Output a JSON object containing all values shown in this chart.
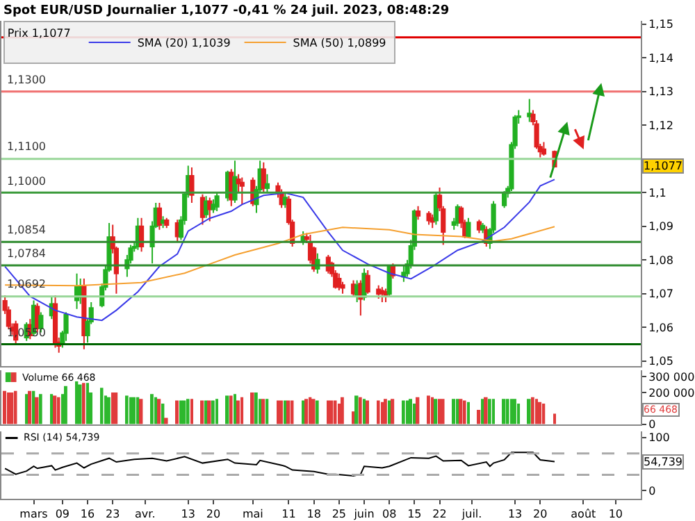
{
  "chart_data": [
    {
      "type": "candlestick",
      "title": "Spot EUR/USD Journalier 1,1077 -0,41 % 24 juil. 2023, 08:48:29",
      "legend_title": "Prix 1,1077",
      "x": [
        "2023-02-21",
        "2023-02-22",
        "2023-02-23",
        "2023-02-24",
        "2023-02-27",
        "2023-02-28",
        "2023-03-01",
        "2023-03-02",
        "2023-03-03",
        "2023-03-06",
        "2023-03-07",
        "2023-03-08",
        "2023-03-09",
        "2023-03-10",
        "2023-03-13",
        "2023-03-14",
        "2023-03-15",
        "2023-03-16",
        "2023-03-17",
        "2023-03-20",
        "2023-03-21",
        "2023-03-22",
        "2023-03-23",
        "2023-03-24",
        "2023-03-27",
        "2023-03-28",
        "2023-03-29",
        "2023-03-30",
        "2023-03-31",
        "2023-04-03",
        "2023-04-04",
        "2023-04-05",
        "2023-04-06",
        "2023-04-07",
        "2023-04-10",
        "2023-04-11",
        "2023-04-12",
        "2023-04-13",
        "2023-04-14",
        "2023-04-17",
        "2023-04-18",
        "2023-04-19",
        "2023-04-20",
        "2023-04-21",
        "2023-04-24",
        "2023-04-25",
        "2023-04-26",
        "2023-04-27",
        "2023-04-28",
        "2023-05-01",
        "2023-05-02",
        "2023-05-03",
        "2023-05-04",
        "2023-05-05",
        "2023-05-08",
        "2023-05-09",
        "2023-05-10",
        "2023-05-11",
        "2023-05-12",
        "2023-05-15",
        "2023-05-16",
        "2023-05-17",
        "2023-05-18",
        "2023-05-19",
        "2023-05-22",
        "2023-05-23",
        "2023-05-24",
        "2023-05-25",
        "2023-05-26",
        "2023-05-29",
        "2023-05-30",
        "2023-05-31",
        "2023-06-01",
        "2023-06-02",
        "2023-06-05",
        "2023-06-06",
        "2023-06-07",
        "2023-06-08",
        "2023-06-09",
        "2023-06-12",
        "2023-06-13",
        "2023-06-14",
        "2023-06-15",
        "2023-06-16",
        "2023-06-19",
        "2023-06-20",
        "2023-06-21",
        "2023-06-22",
        "2023-06-23",
        "2023-06-26",
        "2023-06-27",
        "2023-06-28",
        "2023-06-29",
        "2023-06-30",
        "2023-07-03",
        "2023-07-04",
        "2023-07-05",
        "2023-07-06",
        "2023-07-07",
        "2023-07-10",
        "2023-07-11",
        "2023-07-12",
        "2023-07-13",
        "2023-07-14",
        "2023-07-17",
        "2023-07-18",
        "2023-07-19",
        "2023-07-20",
        "2023-07-21",
        "2023-07-24"
      ],
      "ohlc": [
        [
          1.0679,
          1.0695,
          1.064,
          1.0651
        ],
        [
          1.0651,
          1.0662,
          1.0595,
          1.0604
        ],
        [
          1.06,
          1.0612,
          1.0578,
          1.059
        ],
        [
          1.061,
          1.062,
          1.0553,
          1.0563
        ],
        [
          1.057,
          1.0615,
          1.056,
          1.0608
        ],
        [
          1.0608,
          1.0625,
          1.0565,
          1.0576
        ],
        [
          1.0583,
          1.068,
          1.0575,
          1.0665
        ],
        [
          1.0662,
          1.0672,
          1.0585,
          1.0597
        ],
        [
          1.0597,
          1.0645,
          1.0585,
          1.0635
        ],
        [
          1.0635,
          1.069,
          1.0625,
          1.067
        ],
        [
          1.067,
          1.0695,
          1.054,
          1.055
        ],
        [
          1.0556,
          1.057,
          1.0525,
          1.0545
        ],
        [
          1.055,
          1.059,
          1.054,
          1.0583
        ],
        [
          1.0583,
          1.0645,
          1.056,
          1.0638
        ],
        [
          1.068,
          1.076,
          1.0655,
          1.0722
        ],
        [
          1.069,
          1.0745,
          1.067,
          1.0722
        ],
        [
          1.0722,
          1.0745,
          1.0535,
          1.0576
        ],
        [
          1.0576,
          1.0625,
          1.0555,
          1.0617
        ],
        [
          1.0617,
          1.0675,
          1.061,
          1.0658
        ],
        [
          1.0665,
          1.073,
          1.066,
          1.072
        ],
        [
          1.072,
          1.0785,
          1.071,
          1.0771
        ],
        [
          1.0771,
          1.091,
          1.0765,
          1.0868
        ],
        [
          1.0868,
          1.0905,
          1.082,
          1.0834
        ],
        [
          1.0834,
          1.084,
          1.07,
          1.076
        ],
        [
          1.0775,
          1.0815,
          1.075,
          1.08
        ],
        [
          1.08,
          1.0845,
          1.079,
          1.0835
        ],
        [
          1.0835,
          1.0855,
          1.0825,
          1.084
        ],
        [
          1.084,
          1.0925,
          1.083,
          1.09
        ],
        [
          1.09,
          1.0925,
          1.0825,
          1.084
        ],
        [
          1.084,
          1.0915,
          1.079,
          1.09
        ],
        [
          1.09,
          1.097,
          1.0895,
          1.0954
        ],
        [
          1.0954,
          1.097,
          1.089,
          1.0904
        ],
        [
          1.091,
          1.093,
          1.0895,
          1.0918
        ],
        [
          1.0918,
          1.0925,
          1.0895,
          1.0904
        ],
        [
          1.091,
          1.092,
          1.0853,
          1.087
        ],
        [
          1.0868,
          1.093,
          1.086,
          1.0918
        ],
        [
          1.0918,
          1.1,
          1.0905,
          1.0995
        ],
        [
          1.0995,
          1.108,
          1.0985,
          1.105
        ],
        [
          1.105,
          1.1075,
          1.097,
          1.0993
        ],
        [
          1.0985,
          1.0995,
          1.0905,
          1.0927
        ],
        [
          1.0935,
          1.099,
          1.0925,
          1.0975
        ],
        [
          1.0975,
          1.0985,
          1.0915,
          1.095
        ],
        [
          1.095,
          1.098,
          1.094,
          1.0965
        ],
        [
          1.0958,
          1.1,
          1.0945,
          1.099
        ],
        [
          1.0985,
          1.1065,
          1.0975,
          1.106
        ],
        [
          1.106,
          1.107,
          1.096,
          1.0979
        ],
        [
          1.0979,
          1.1095,
          1.097,
          1.1047
        ],
        [
          1.104,
          1.1055,
          1.1,
          1.1027
        ],
        [
          1.103,
          1.1045,
          1.0965,
          1.102
        ],
        [
          1.1036,
          1.1045,
          1.096,
          1.0968
        ],
        [
          1.0965,
          1.102,
          1.094,
          1.1009
        ],
        [
          1.1009,
          1.1095,
          1.1,
          1.107
        ],
        [
          1.107,
          1.109,
          1.1,
          1.1013
        ],
        [
          1.1013,
          1.1055,
          1.1,
          1.1026
        ],
        [
          1.102,
          1.103,
          1.0985,
          1.0999
        ],
        [
          1.0999,
          1.101,
          1.0955,
          1.0965
        ],
        [
          1.0965,
          1.1,
          1.0955,
          1.0986
        ],
        [
          1.098,
          1.099,
          1.0905,
          1.0912
        ],
        [
          1.0912,
          1.092,
          1.084,
          1.085
        ],
        [
          1.0855,
          1.0885,
          1.0845,
          1.087
        ],
        [
          1.0868,
          1.088,
          1.085,
          1.0862
        ],
        [
          1.085,
          1.0875,
          1.079,
          1.08
        ],
        [
          1.0835,
          1.084,
          1.0765,
          1.0774
        ],
        [
          1.0774,
          1.082,
          1.076,
          1.0801
        ],
        [
          1.0808,
          1.0815,
          1.076,
          1.0768
        ],
        [
          1.079,
          1.0795,
          1.075,
          1.076
        ],
        [
          1.076,
          1.077,
          1.0715,
          1.072
        ],
        [
          1.0745,
          1.076,
          1.071,
          1.072
        ],
        [
          1.0726,
          1.0735,
          1.07,
          1.0717
        ],
        [
          1.0728,
          1.074,
          1.069,
          1.07
        ],
        [
          1.0692,
          1.074,
          1.0675,
          1.0726
        ],
        [
          1.073,
          1.074,
          1.0635,
          1.0684
        ],
        [
          1.069,
          1.0775,
          1.068,
          1.076
        ],
        [
          1.0754,
          1.077,
          1.07,
          1.0706
        ],
        [
          1.0713,
          1.0725,
          1.0685,
          1.0699
        ],
        [
          1.0709,
          1.072,
          1.0675,
          1.07
        ],
        [
          1.0706,
          1.0715,
          1.0675,
          1.0695
        ],
        [
          1.0699,
          1.0785,
          1.069,
          1.0781
        ],
        [
          1.0781,
          1.079,
          1.0745,
          1.0754
        ],
        [
          1.075,
          1.0785,
          1.0735,
          1.0763
        ],
        [
          1.076,
          1.08,
          1.075,
          1.0788
        ],
        [
          1.0788,
          1.086,
          1.0775,
          1.0842
        ],
        [
          1.0842,
          1.095,
          1.083,
          1.0945
        ],
        [
          1.0945,
          1.096,
          1.092,
          1.0931
        ],
        [
          1.0938,
          1.0945,
          1.0905,
          1.0917
        ],
        [
          1.0925,
          1.0935,
          1.0895,
          1.0913
        ],
        [
          1.0917,
          1.1,
          1.0905,
          1.0992
        ],
        [
          1.0992,
          1.1015,
          1.0945,
          1.0956
        ],
        [
          1.0951,
          1.096,
          1.0845,
          1.0883
        ],
        [
          1.0904,
          1.0925,
          1.089,
          1.0913
        ],
        [
          1.091,
          1.0965,
          1.09,
          1.0958
        ],
        [
          1.0954,
          1.096,
          1.0895,
          1.0911
        ],
        [
          1.0911,
          1.092,
          1.0865,
          1.087
        ],
        [
          1.087,
          1.0925,
          1.0865,
          1.0911
        ],
        [
          1.0913,
          1.092,
          1.088,
          1.089
        ],
        [
          1.089,
          1.091,
          1.088,
          1.0902
        ],
        [
          1.089,
          1.09,
          1.084,
          1.085
        ],
        [
          1.085,
          1.0895,
          1.0833,
          1.089
        ],
        [
          1.089,
          1.0975,
          1.088,
          1.0965
        ],
        [
          1.0962,
          1.1005,
          1.0955,
          1.0999
        ],
        [
          1.0998,
          1.102,
          1.0985,
          1.1012
        ],
        [
          1.1012,
          1.115,
          1.1005,
          1.1142
        ],
        [
          1.114,
          1.123,
          1.113,
          1.1224
        ],
        [
          1.1224,
          1.1245,
          1.1205,
          1.1227
        ],
        [
          1.1226,
          1.1278,
          1.121,
          1.1235
        ],
        [
          1.1232,
          1.1245,
          1.12,
          1.1211
        ],
        [
          1.1204,
          1.1215,
          1.113,
          1.1136
        ],
        [
          1.1136,
          1.1145,
          1.1105,
          1.1122
        ],
        [
          1.1129,
          1.115,
          1.111,
          1.1115
        ],
        [
          1.1122,
          1.1125,
          1.1075,
          1.1077
        ]
      ],
      "colors": [
        "#e02020",
        "#e02020",
        "#e02020",
        "#e02020",
        "#22b022",
        "#e02020",
        "#22b022",
        "#e02020",
        "#22b022",
        "#22b022",
        "#e02020",
        "#e02020",
        "#22b022",
        "#22b022",
        "#22b022",
        "#22b022",
        "#e02020",
        "#22b022",
        "#22b022",
        "#22b022",
        "#22b022",
        "#22b022",
        "#e02020",
        "#e02020",
        "#22b022",
        "#22b022",
        "#22b022",
        "#22b022",
        "#e02020",
        "#22b022",
        "#22b022",
        "#e02020",
        "#22b022",
        "#e02020",
        "#e02020",
        "#22b022",
        "#22b022",
        "#22b022",
        "#e02020",
        "#e02020",
        "#22b022",
        "#e02020",
        "#22b022",
        "#22b022",
        "#22b022",
        "#e02020",
        "#22b022",
        "#e02020",
        "#e02020",
        "#e02020",
        "#22b022",
        "#22b022",
        "#e02020",
        "#22b022",
        "#e02020",
        "#e02020",
        "#22b022",
        "#e02020",
        "#e02020",
        "#22b022",
        "#e02020",
        "#e02020",
        "#e02020",
        "#22b022",
        "#e02020",
        "#e02020",
        "#e02020",
        "#e02020",
        "#e02020",
        "#e02020",
        "#22b022",
        "#e02020",
        "#22b022",
        "#e02020",
        "#e02020",
        "#e02020",
        "#e02020",
        "#22b022",
        "#e02020",
        "#22b022",
        "#22b022",
        "#22b022",
        "#22b022",
        "#e02020",
        "#e02020",
        "#e02020",
        "#22b022",
        "#e02020",
        "#e02020",
        "#22b022",
        "#22b022",
        "#e02020",
        "#e02020",
        "#22b022",
        "#e02020",
        "#22b022",
        "#e02020",
        "#22b022",
        "#22b022",
        "#22b022",
        "#22b022",
        "#22b022",
        "#22b022",
        "#22b022",
        "#22b022",
        "#e02020",
        "#e02020",
        "#e02020",
        "#e02020",
        "#e02020"
      ],
      "series": [
        {
          "name": "SMA (20) 1,1039",
          "type": "line",
          "color": "#3a3ae8",
          "x": [
            "2023-02-21",
            "2023-02-28",
            "2023-03-07",
            "2023-03-13",
            "2023-03-20",
            "2023-03-24",
            "2023-03-30",
            "2023-04-05",
            "2023-04-10",
            "2023-04-13",
            "2023-04-19",
            "2023-04-25",
            "2023-04-28",
            "2023-05-04",
            "2023-05-10",
            "2023-05-15",
            "2023-05-22",
            "2023-05-26",
            "2023-06-02",
            "2023-06-08",
            "2023-06-14",
            "2023-06-20",
            "2023-06-27",
            "2023-07-04",
            "2023-07-10",
            "2023-07-17",
            "2023-07-20",
            "2023-07-24"
          ],
          "values": [
            1.0781,
            1.0692,
            1.0651,
            1.0631,
            1.0621,
            1.0651,
            1.0706,
            1.0781,
            1.0818,
            1.0886,
            1.0924,
            1.0945,
            1.0965,
            1.0992,
            1.0999,
            1.0986,
            1.0883,
            1.0829,
            1.0788,
            1.0761,
            1.0744,
            1.0781,
            1.0829,
            1.0856,
            1.0897,
            1.0972,
            1.102,
            1.1039
          ]
        },
        {
          "name": "SMA (50) 1,0899",
          "type": "line",
          "color": "#f5a030",
          "x": [
            "2023-02-21",
            "2023-03-13",
            "2023-03-31",
            "2023-04-12",
            "2023-04-19",
            "2023-04-26",
            "2023-05-08",
            "2023-05-15",
            "2023-05-26",
            "2023-06-08",
            "2023-06-15",
            "2023-06-28",
            "2023-07-07",
            "2023-07-12",
            "2023-07-24"
          ],
          "values": [
            1.0726,
            1.0724,
            1.0733,
            1.0761,
            1.0788,
            1.0815,
            1.0849,
            1.0876,
            1.0897,
            1.089,
            1.0876,
            1.087,
            1.0856,
            1.0863,
            1.0899
          ]
        }
      ],
      "xlim": [
        "2023-02-20",
        "2023-08-17"
      ],
      "ylim": [
        1.0485,
        1.151
      ],
      "yticks": [
        {
          "value": 1.05,
          "label": "1,05"
        },
        {
          "value": 1.06,
          "label": "1,06"
        },
        {
          "value": 1.07,
          "label": "1,07"
        },
        {
          "value": 1.08,
          "label": "1,08"
        },
        {
          "value": 1.09,
          "label": "1,09"
        },
        {
          "value": 1.1,
          "label": "1,1"
        },
        {
          "value": 1.11,
          "label": null
        },
        {
          "value": 1.12,
          "label": "1,12"
        },
        {
          "value": 1.13,
          "label": "1,13"
        },
        {
          "value": 1.14,
          "label": "1,14"
        },
        {
          "value": 1.15,
          "label": "1,15"
        }
      ],
      "ref_lines": [
        {
          "axis": "y",
          "value": 1.1461,
          "label": null,
          "color": "#e00000"
        },
        {
          "axis": "y",
          "value": 1.13,
          "label": "1,1300",
          "color": "#f07070"
        },
        {
          "axis": "y",
          "value": 1.11,
          "label": "1,1100",
          "color": "#99d699"
        },
        {
          "axis": "y",
          "value": 1.1,
          "label": "1,1000",
          "color": "#3a9a3a"
        },
        {
          "axis": "y",
          "value": 1.0854,
          "label": "1,0854",
          "color": "#2e8b2e"
        },
        {
          "axis": "y",
          "value": 1.0784,
          "label": "1,0784",
          "color": "#2e8b2e"
        },
        {
          "axis": "y",
          "value": 1.0692,
          "label": "1,0692",
          "color": "#99d699"
        },
        {
          "axis": "y",
          "value": 1.055,
          "label": "1,0550",
          "color": "#006400"
        }
      ],
      "annotations": [
        "1,1077"
      ],
      "legend": "top left",
      "tick_labels": "y"
    },
    {
      "type": "bar",
      "x": [
        "2023-02-21",
        "2023-02-22",
        "2023-02-23",
        "2023-02-24",
        "2023-02-27",
        "2023-02-28",
        "2023-03-01",
        "2023-03-02",
        "2023-03-03",
        "2023-03-06",
        "2023-03-07",
        "2023-03-08",
        "2023-03-09",
        "2023-03-10",
        "2023-03-13",
        "2023-03-14",
        "2023-03-15",
        "2023-03-16",
        "2023-03-17",
        "2023-03-20",
        "2023-03-21",
        "2023-03-22",
        "2023-03-23",
        "2023-03-24",
        "2023-03-27",
        "2023-03-28",
        "2023-03-29",
        "2023-03-30",
        "2023-03-31",
        "2023-04-03",
        "2023-04-04",
        "2023-04-05",
        "2023-04-06",
        "2023-04-07",
        "2023-04-10",
        "2023-04-11",
        "2023-04-12",
        "2023-04-13",
        "2023-04-14",
        "2023-04-17",
        "2023-04-18",
        "2023-04-19",
        "2023-04-20",
        "2023-04-21",
        "2023-04-24",
        "2023-04-25",
        "2023-04-26",
        "2023-04-27",
        "2023-04-28",
        "2023-05-01",
        "2023-05-02",
        "2023-05-03",
        "2023-05-04",
        "2023-05-05",
        "2023-05-08",
        "2023-05-09",
        "2023-05-10",
        "2023-05-11",
        "2023-05-12",
        "2023-05-15",
        "2023-05-16",
        "2023-05-17",
        "2023-05-18",
        "2023-05-19",
        "2023-05-22",
        "2023-05-23",
        "2023-05-24",
        "2023-05-25",
        "2023-05-26",
        "2023-05-29",
        "2023-05-30",
        "2023-05-31",
        "2023-06-01",
        "2023-06-02",
        "2023-06-05",
        "2023-06-06",
        "2023-06-07",
        "2023-06-08",
        "2023-06-09",
        "2023-06-12",
        "2023-06-13",
        "2023-06-14",
        "2023-06-15",
        "2023-06-16",
        "2023-06-19",
        "2023-06-20",
        "2023-06-21",
        "2023-06-22",
        "2023-06-23",
        "2023-06-26",
        "2023-06-27",
        "2023-06-28",
        "2023-06-29",
        "2023-06-30",
        "2023-07-03",
        "2023-07-04",
        "2023-07-05",
        "2023-07-06",
        "2023-07-07",
        "2023-07-10",
        "2023-07-11",
        "2023-07-12",
        "2023-07-13",
        "2023-07-14",
        "2023-07-17",
        "2023-07-18",
        "2023-07-19",
        "2023-07-20",
        "2023-07-21",
        "2023-07-24"
      ],
      "series": [
        {
          "name": "Volume 66 468",
          "values": [
            210000,
            200000,
            200000,
            210000,
            190000,
            210000,
            210000,
            170000,
            190000,
            190000,
            180000,
            170000,
            190000,
            240000,
            270000,
            250000,
            260000,
            260000,
            200000,
            230000,
            180000,
            170000,
            200000,
            200000,
            180000,
            170000,
            170000,
            170000,
            160000,
            190000,
            170000,
            160000,
            130000,
            40000,
            150000,
            150000,
            150000,
            160000,
            160000,
            150000,
            150000,
            150000,
            150000,
            160000,
            180000,
            180000,
            190000,
            150000,
            170000,
            200000,
            200000,
            160000,
            160000,
            160000,
            150000,
            150000,
            150000,
            150000,
            150000,
            150000,
            160000,
            170000,
            160000,
            150000,
            150000,
            150000,
            150000,
            130000,
            170000,
            80000,
            180000,
            170000,
            160000,
            150000,
            150000,
            140000,
            160000,
            150000,
            160000,
            150000,
            150000,
            160000,
            130000,
            170000,
            180000,
            170000,
            160000,
            160000,
            160000,
            160000,
            160000,
            160000,
            150000,
            140000,
            90000,
            160000,
            170000,
            160000,
            160000,
            160000,
            160000,
            160000,
            160000,
            130000,
            160000,
            170000,
            160000,
            140000,
            130000,
            66468
          ],
          "colors": [
            "#e03c3c",
            "#e03c3c",
            "#e03c3c",
            "#e03c3c",
            "#2db82d",
            "#e03c3c",
            "#2db82d",
            "#e03c3c",
            "#2db82d",
            "#2db82d",
            "#e03c3c",
            "#e03c3c",
            "#2db82d",
            "#2db82d",
            "#2db82d",
            "#2db82d",
            "#e03c3c",
            "#2db82d",
            "#2db82d",
            "#2db82d",
            "#2db82d",
            "#2db82d",
            "#e03c3c",
            "#e03c3c",
            "#2db82d",
            "#2db82d",
            "#2db82d",
            "#2db82d",
            "#e03c3c",
            "#2db82d",
            "#2db82d",
            "#e03c3c",
            "#2db82d",
            "#e03c3c",
            "#e03c3c",
            "#2db82d",
            "#2db82d",
            "#2db82d",
            "#e03c3c",
            "#e03c3c",
            "#2db82d",
            "#e03c3c",
            "#2db82d",
            "#2db82d",
            "#2db82d",
            "#e03c3c",
            "#2db82d",
            "#e03c3c",
            "#e03c3c",
            "#e03c3c",
            "#2db82d",
            "#2db82d",
            "#e03c3c",
            "#2db82d",
            "#e03c3c",
            "#e03c3c",
            "#2db82d",
            "#e03c3c",
            "#e03c3c",
            "#2db82d",
            "#e03c3c",
            "#e03c3c",
            "#e03c3c",
            "#2db82d",
            "#e03c3c",
            "#e03c3c",
            "#e03c3c",
            "#e03c3c",
            "#e03c3c",
            "#e03c3c",
            "#2db82d",
            "#e03c3c",
            "#2db82d",
            "#e03c3c",
            "#e03c3c",
            "#e03c3c",
            "#e03c3c",
            "#2db82d",
            "#e03c3c",
            "#2db82d",
            "#2db82d",
            "#2db82d",
            "#2db82d",
            "#e03c3c",
            "#e03c3c",
            "#e03c3c",
            "#2db82d",
            "#e03c3c",
            "#e03c3c",
            "#2db82d",
            "#2db82d",
            "#e03c3c",
            "#e03c3c",
            "#2db82d",
            "#e03c3c",
            "#2db82d",
            "#e03c3c",
            "#2db82d",
            "#2db82d",
            "#2db82d",
            "#2db82d",
            "#2db82d",
            "#2db82d",
            "#2db82d",
            "#2db82d",
            "#e03c3c",
            "#e03c3c",
            "#e03c3c",
            "#e03c3c",
            "#e03c3c"
          ]
        }
      ],
      "xlim": [
        "2023-02-20",
        "2023-08-17"
      ],
      "ylim": [
        0,
        340000
      ],
      "yticks": [
        {
          "value": 0,
          "label": "0"
        },
        {
          "value": 100000,
          "label": null
        },
        {
          "value": 200000,
          "label": "200 000"
        },
        {
          "value": 300000,
          "label": "300 000"
        }
      ],
      "annotations": [
        "66 468"
      ],
      "legend": "top left",
      "tick_labels": "y"
    },
    {
      "type": "line",
      "series": [
        {
          "name": "RSI (14) 54,739",
          "color": "#000000",
          "x": [
            "2023-02-21",
            "2023-02-24",
            "2023-02-27",
            "2023-03-01",
            "2023-03-02",
            "2023-03-06",
            "2023-03-07",
            "2023-03-09",
            "2023-03-13",
            "2023-03-15",
            "2023-03-17",
            "2023-03-22",
            "2023-03-24",
            "2023-03-29",
            "2023-04-03",
            "2023-04-07",
            "2023-04-12",
            "2023-04-17",
            "2023-04-24",
            "2023-04-26",
            "2023-05-02",
            "2023-05-03",
            "2023-05-09",
            "2023-05-10",
            "2023-05-12",
            "2023-05-18",
            "2023-05-22",
            "2023-05-24",
            "2023-05-29",
            "2023-05-31",
            "2023-06-01",
            "2023-06-06",
            "2023-06-08",
            "2023-06-14",
            "2023-06-19",
            "2023-06-21",
            "2023-06-23",
            "2023-06-28",
            "2023-06-30",
            "2023-07-05",
            "2023-07-06",
            "2023-07-07",
            "2023-07-10",
            "2023-07-12",
            "2023-07-18",
            "2023-07-20",
            "2023-07-24"
          ],
          "values": [
            42,
            31,
            37,
            46,
            42,
            47,
            39,
            44,
            52,
            43,
            50,
            61,
            54,
            59,
            61,
            56,
            64,
            52,
            59,
            52,
            49,
            57,
            48,
            46,
            39,
            36,
            31,
            31,
            28,
            31,
            46,
            43,
            46,
            62,
            61,
            65,
            56,
            57,
            47,
            54,
            46,
            52,
            58,
            72,
            72,
            58,
            54.739
          ]
        }
      ],
      "xlim": [
        "2023-02-20",
        "2023-08-17"
      ],
      "xticks": [
        {
          "value": "2023-03-01",
          "label": "mars"
        },
        {
          "value": "2023-03-09",
          "label": "09"
        },
        {
          "value": "2023-03-16",
          "label": "16"
        },
        {
          "value": "2023-03-23",
          "label": "23"
        },
        {
          "value": "2023-04-01",
          "label": "avr."
        },
        {
          "value": "2023-04-13",
          "label": "13"
        },
        {
          "value": "2023-04-20",
          "label": "20"
        },
        {
          "value": "2023-05-01",
          "label": "mai"
        },
        {
          "value": "2023-05-11",
          "label": "11"
        },
        {
          "value": "2023-05-18",
          "label": "18"
        },
        {
          "value": "2023-05-25",
          "label": "25"
        },
        {
          "value": "2023-06-01",
          "label": "juin"
        },
        {
          "value": "2023-06-08",
          "label": "08"
        },
        {
          "value": "2023-06-15",
          "label": "15"
        },
        {
          "value": "2023-06-22",
          "label": "22"
        },
        {
          "value": "2023-07-01",
          "label": "juil."
        },
        {
          "value": "2023-07-13",
          "label": "13"
        },
        {
          "value": "2023-07-20",
          "label": "20"
        },
        {
          "value": "2023-08-01",
          "label": "août"
        },
        {
          "value": "2023-08-10",
          "label": "10"
        }
      ],
      "ylim": [
        -15,
        112
      ],
      "yticks": [
        0,
        100
      ],
      "ref_lines": [
        {
          "axis": "y",
          "value": 70,
          "label": null,
          "color": "#aaaaaa",
          "line_style": "dashed"
        },
        {
          "axis": "y",
          "value": 30,
          "label": null,
          "color": "#aaaaaa",
          "line_style": "dashed"
        }
      ],
      "annotations": [
        "54,739"
      ],
      "legend": "top left"
    }
  ]
}
